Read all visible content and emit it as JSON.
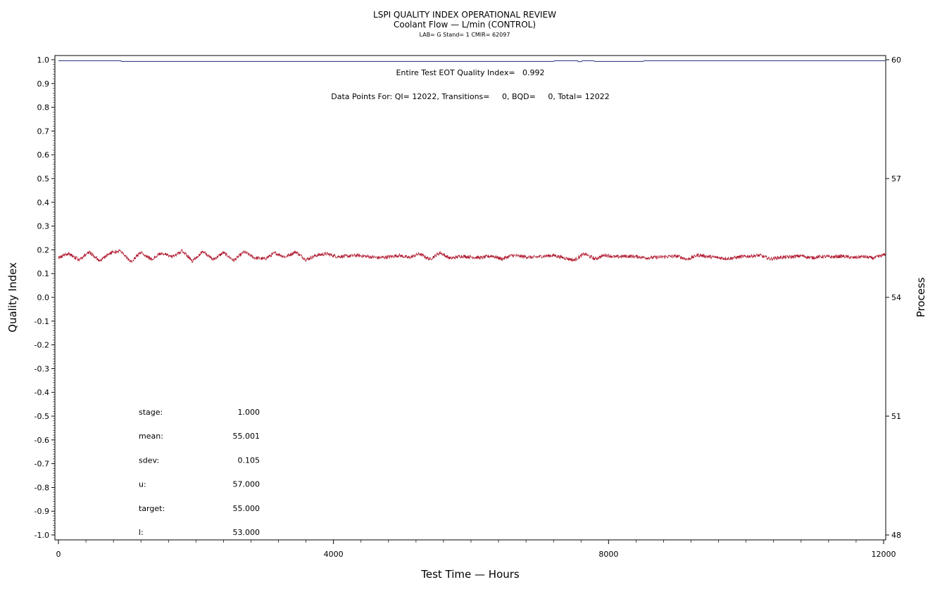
{
  "header": {
    "title": "LSPI QUALITY INDEX OPERATIONAL REVIEW",
    "subtitle": "Coolant Flow — L/min (CONTROL)",
    "subtitle2": "LAB= G Stand= 1 CMIR= 62097"
  },
  "annotations": {
    "eot": "Entire Test EOT Quality Index=   0.992",
    "points": "Data Points For: QI= 12022, Transitions=     0, BQD=     0, Total= 12022"
  },
  "stats": [
    {
      "label": "stage:",
      "value": "1.000"
    },
    {
      "label": "mean:",
      "value": "55.001"
    },
    {
      "label": "sdev:",
      "value": "0.105"
    },
    {
      "label": "u:",
      "value": "57.000"
    },
    {
      "label": "target:",
      "value": "55.000"
    },
    {
      "label": "l:",
      "value": "53.000"
    }
  ],
  "chart_data": {
    "type": "line",
    "xlabel": "Test Time — Hours",
    "ylabel": "Quality Index",
    "y2label": "Process",
    "xlim": [
      0,
      12000
    ],
    "ylim": [
      -1.0,
      1.0
    ],
    "y2lim": [
      48,
      60
    ],
    "x_ticks": [
      0,
      4000,
      8000,
      12000
    ],
    "y_ticks": [
      "1.0",
      "0.9",
      "0.8",
      "0.7",
      "0.6",
      "0.5",
      "0.4",
      "0.3",
      "0.2",
      "0.1",
      "0.0",
      "-0.1",
      "-0.2",
      "-0.3",
      "-0.4",
      "-0.5",
      "-0.6",
      "-0.7",
      "-0.8",
      "-0.9",
      "-1.0"
    ],
    "y2_ticks": [
      60,
      57,
      54,
      51,
      48
    ],
    "grid": false,
    "series": [
      {
        "color": "#1f2a7a",
        "axis": "left",
        "x": [
          0,
          900,
          920,
          7200,
          7220,
          7550,
          7560,
          7600,
          7620,
          7780,
          7800,
          8500,
          8520,
          12022
        ],
        "values": [
          0.996,
          0.996,
          0.993,
          0.993,
          0.996,
          0.996,
          0.992,
          0.992,
          0.996,
          0.996,
          0.993,
          0.993,
          0.996,
          0.996
        ]
      },
      {
        "color": "#b0182e",
        "axis": "right",
        "x": [
          0,
          150,
          300,
          450,
          600,
          750,
          900,
          1050,
          1200,
          1350,
          1500,
          1650,
          1800,
          1950,
          2100,
          2250,
          2400,
          2550,
          2700,
          2850,
          3000,
          3150,
          3300,
          3450,
          3600,
          3750,
          3900,
          4050,
          4200,
          4350,
          4500,
          4650,
          4800,
          4950,
          5100,
          5250,
          5400,
          5550,
          5700,
          5850,
          6000,
          6150,
          6300,
          6450,
          6600,
          6750,
          6900,
          7050,
          7200,
          7350,
          7500,
          7650,
          7800,
          7950,
          8100,
          8250,
          8400,
          8550,
          8700,
          8850,
          9000,
          9150,
          9300,
          9450,
          9600,
          9750,
          9900,
          10050,
          10200,
          10350,
          10500,
          10650,
          10800,
          10950,
          11100,
          11250,
          11400,
          11550,
          11700,
          11850,
          12022
        ],
        "values": [
          55.0,
          55.1,
          54.95,
          55.15,
          54.92,
          55.12,
          55.18,
          54.9,
          55.14,
          54.96,
          55.12,
          55.02,
          55.17,
          54.92,
          55.16,
          54.95,
          55.13,
          54.93,
          55.15,
          55.0,
          54.97,
          55.12,
          55.02,
          55.15,
          54.95,
          55.06,
          55.1,
          55.03,
          55.04,
          55.06,
          55.03,
          55.0,
          55.02,
          55.06,
          55.0,
          55.1,
          54.96,
          55.13,
          54.98,
          55.04,
          55.02,
          55.0,
          55.05,
          54.97,
          55.06,
          55.03,
          55.01,
          55.04,
          55.06,
          55.0,
          54.94,
          55.1,
          54.97,
          55.07,
          55.02,
          55.04,
          55.03,
          55.0,
          55.01,
          55.03,
          55.04,
          54.96,
          55.07,
          55.03,
          55.0,
          54.98,
          55.02,
          55.04,
          55.06,
          54.97,
          55.01,
          55.02,
          55.05,
          55.0,
          55.03,
          55.02,
          55.04,
          55.0,
          55.03,
          54.99,
          55.08
        ]
      }
    ]
  }
}
